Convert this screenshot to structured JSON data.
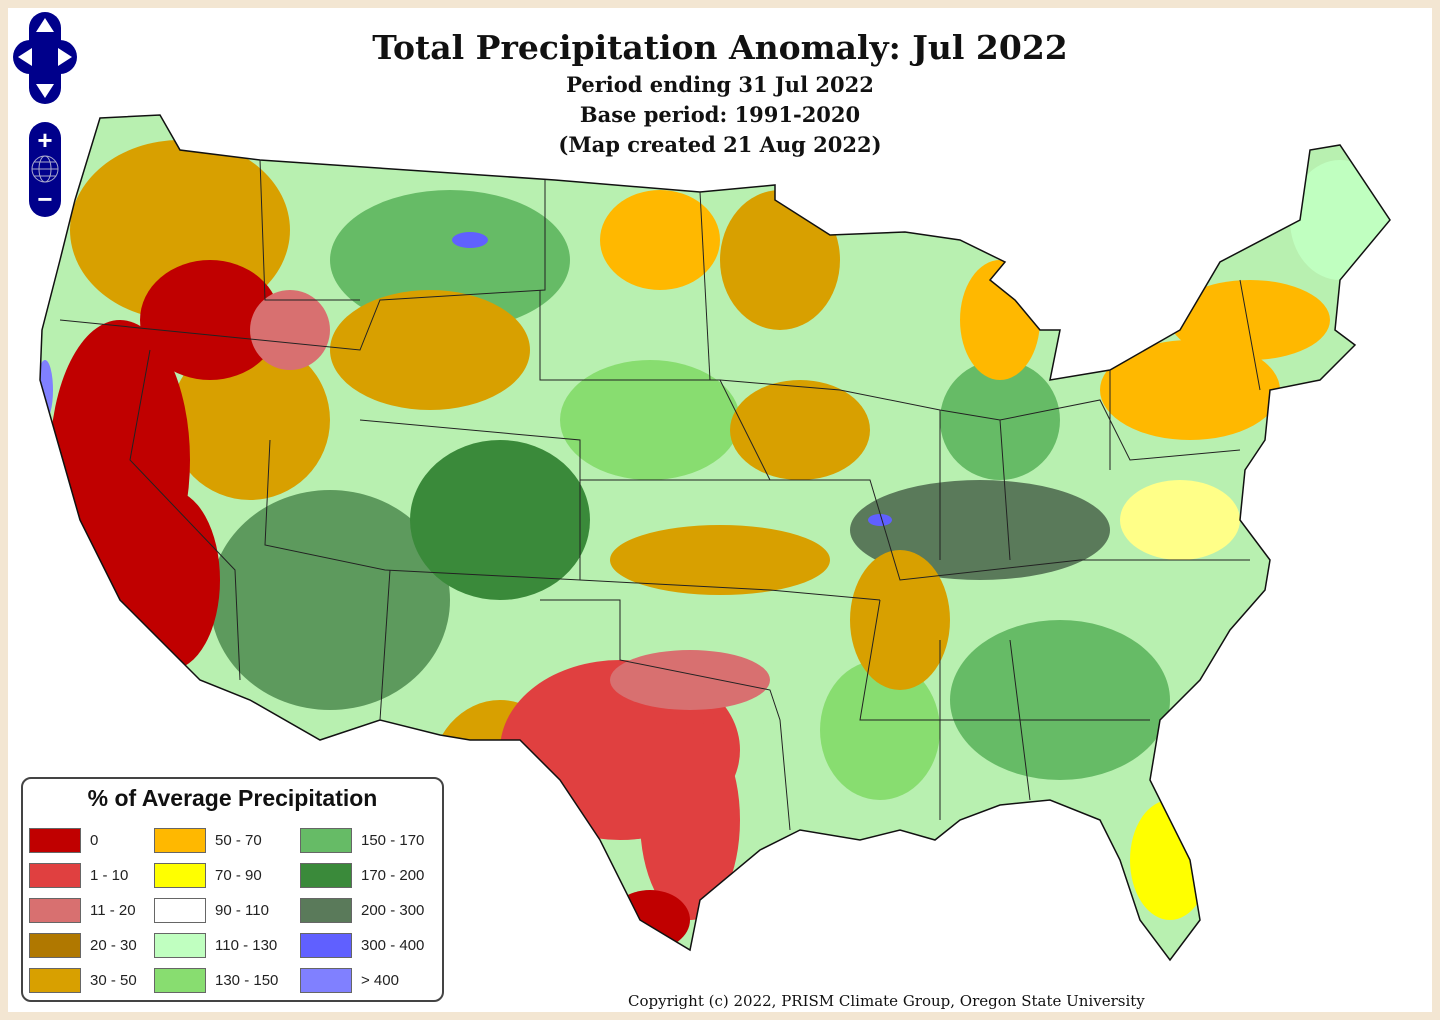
{
  "title": "Total Precipitation Anomaly: Jul 2022",
  "subtitle_period": "Period ending 31 Jul 2022",
  "subtitle_base": "Base period: 1991-2020",
  "subtitle_created": "(Map created 21 Aug 2022)",
  "controls": {
    "pan": "pan-control",
    "zoom_in": "+",
    "zoom_out": "−"
  },
  "legend": {
    "title": "% of Average Precipitation",
    "items": [
      {
        "label": "0",
        "color": "#c00000"
      },
      {
        "label": "1 - 10",
        "color": "#e04040"
      },
      {
        "label": "11 - 20",
        "color": "#d87070"
      },
      {
        "label": "20 - 30",
        "color": "#b07800"
      },
      {
        "label": "30 - 50",
        "color": "#d8a000"
      },
      {
        "label": "50 - 70",
        "color": "#ffb800"
      },
      {
        "label": "70 - 90",
        "color": "#ffff00"
      },
      {
        "label": "90 - 110",
        "color": "#ffffff"
      },
      {
        "label": "110 - 130",
        "color": "#c0ffc0"
      },
      {
        "label": "130 - 150",
        "color": "#88dd70"
      },
      {
        "label": "150 - 170",
        "color": "#66bb66"
      },
      {
        "label": "170 - 200",
        "color": "#3a8a3a"
      },
      {
        "label": "200 - 300",
        "color": "#5a7a5a"
      },
      {
        "label": "300 - 400",
        "color": "#6060ff"
      },
      {
        "label": "> 400",
        "color": "#8080ff"
      }
    ]
  },
  "copyright": "Copyright (c) 2022, PRISM Climate Group, Oregon State University"
}
